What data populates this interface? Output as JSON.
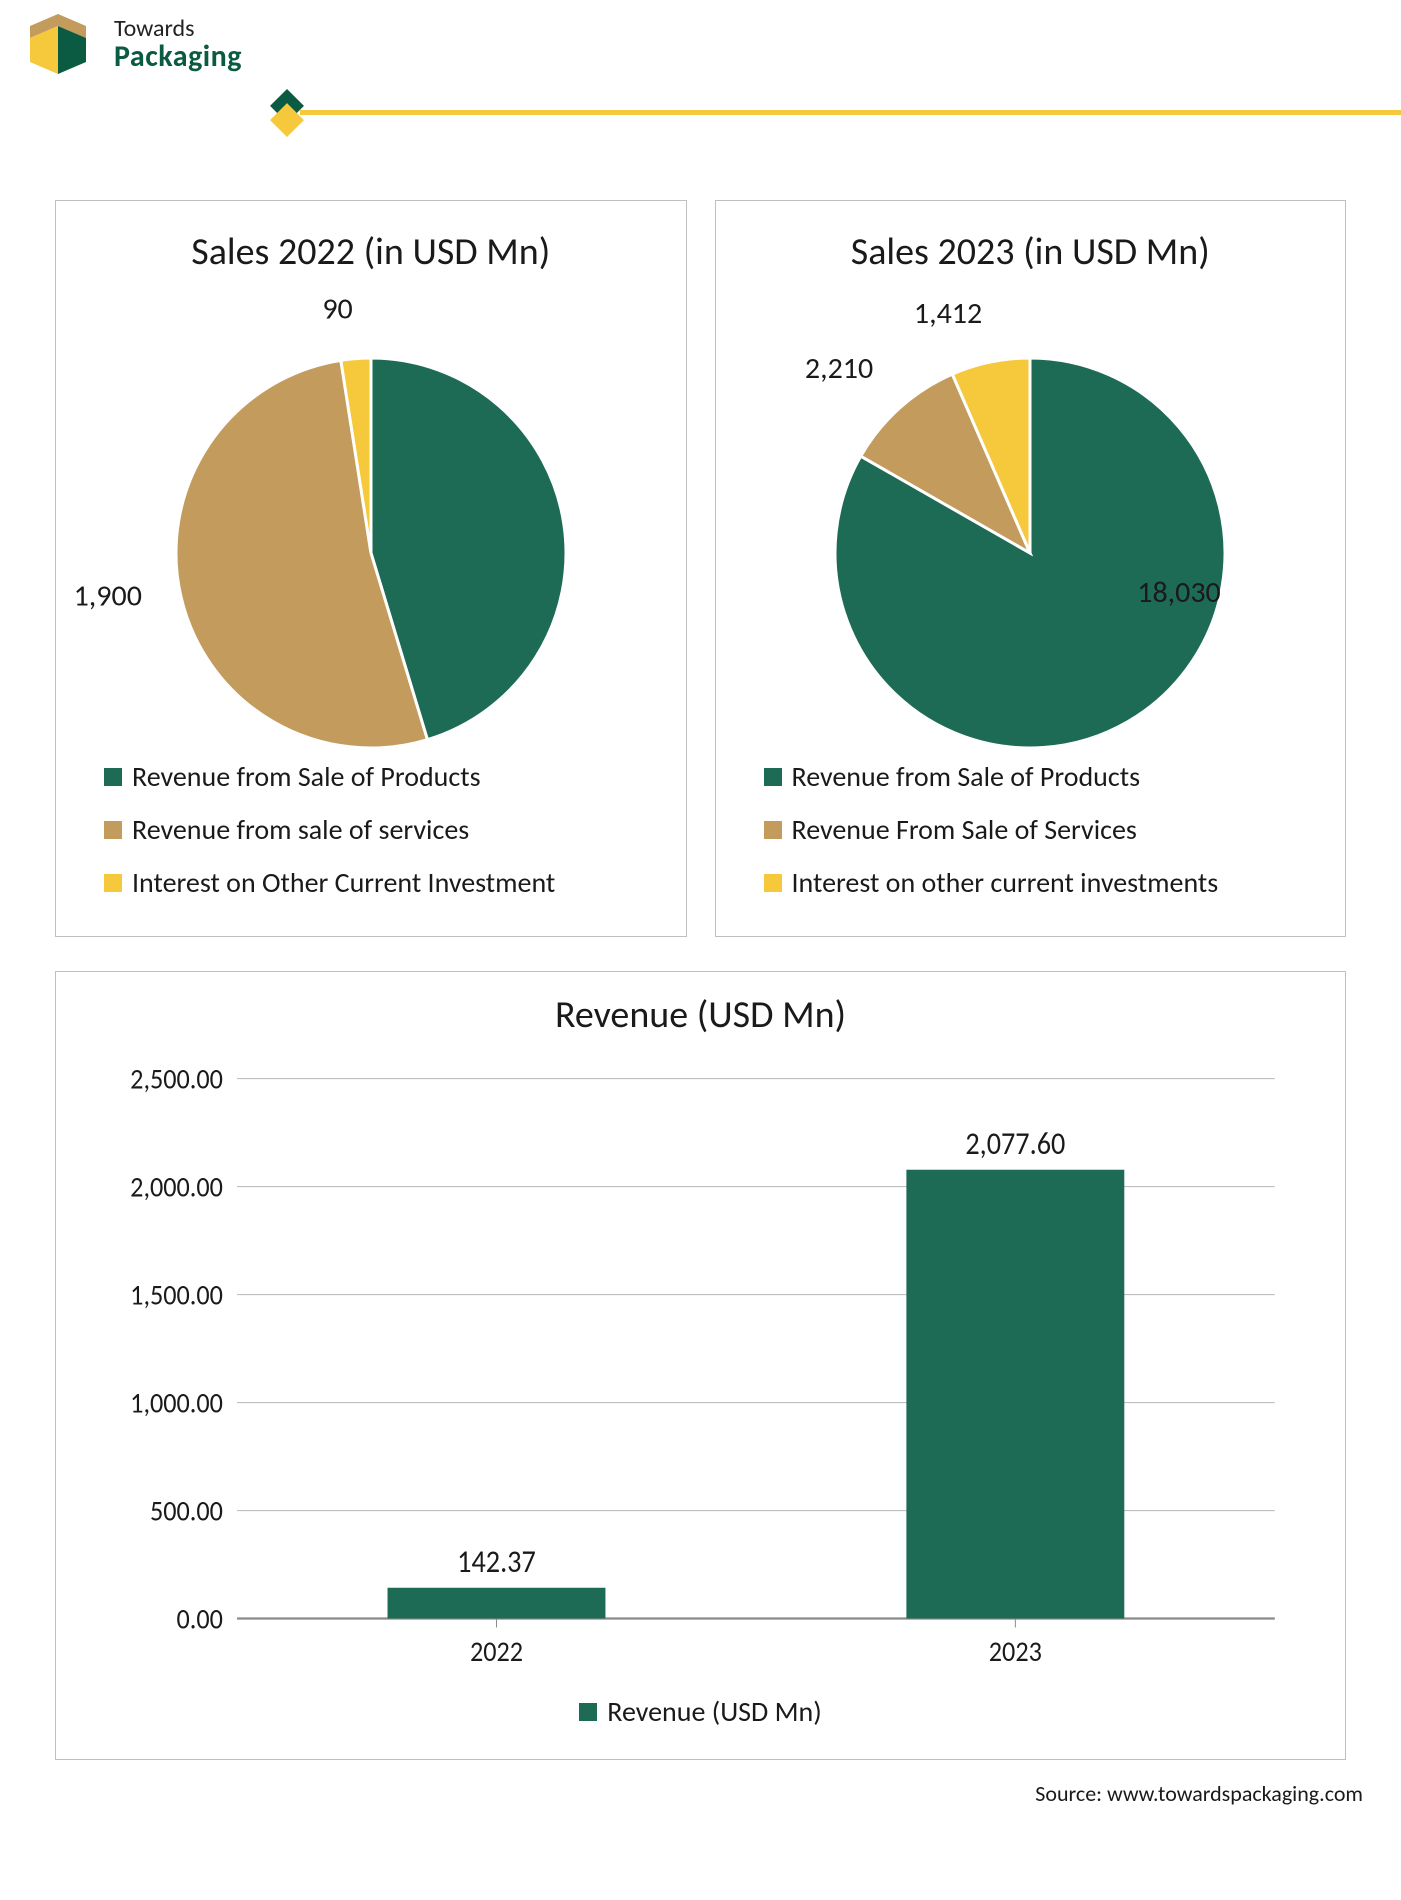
{
  "brand": {
    "line1": "Towards",
    "line2": "Packaging",
    "colors": {
      "green": "#0b5a42",
      "tan": "#c39b5d",
      "yellow": "#f5c93b",
      "dark": "#232323"
    }
  },
  "divider": {
    "line_color": "#f5c93b",
    "diamond_front": "#f5c93b",
    "diamond_back": "#0b5a42"
  },
  "pie2022": {
    "type": "pie",
    "title": "Sales 2022 (in USD Mn)",
    "title_fontsize": 38,
    "slices": [
      {
        "name": "Revenue from Sale of Products",
        "value": 1650,
        "color": "#1e6b55",
        "show_label": false
      },
      {
        "name": "Revenue from sale of services",
        "value": 1900,
        "color": "#c39b5d",
        "show_label": true,
        "label_text": "1,900"
      },
      {
        "name": "Interest on Other Current Investment",
        "value": 90,
        "color": "#f5c93b",
        "show_label": true,
        "label_text": "90"
      }
    ],
    "legend": [
      {
        "color": "#1e6b55",
        "label": "Revenue from Sale of Products"
      },
      {
        "color": "#c39b5d",
        "label": "Revenue from sale of services"
      },
      {
        "color": "#f5c93b",
        "label": "Interest on Other Current Investment"
      }
    ],
    "background_color": "#ffffff",
    "label_fontsize": 30,
    "legend_fontsize": 28
  },
  "pie2023": {
    "type": "pie",
    "title": "Sales 2023 (in USD Mn)",
    "title_fontsize": 38,
    "slices": [
      {
        "name": "Revenue from Sale of Products",
        "value": 18030,
        "color": "#1e6b55",
        "show_label": true,
        "label_text": "18,030"
      },
      {
        "name": "Revenue From Sale of Services",
        "value": 2210,
        "color": "#c39b5d",
        "show_label": true,
        "label_text": "2,210"
      },
      {
        "name": "Interest on other current investments",
        "value": 1412,
        "color": "#f5c93b",
        "show_label": true,
        "label_text": "1,412"
      }
    ],
    "legend": [
      {
        "color": "#1e6b55",
        "label": "Revenue from Sale of Products"
      },
      {
        "color": "#c39b5d",
        "label": "Revenue From Sale of Services"
      },
      {
        "color": "#f5c93b",
        "label": "Interest on other current investments"
      }
    ],
    "background_color": "#ffffff",
    "label_fontsize": 30,
    "legend_fontsize": 28
  },
  "bar": {
    "type": "bar",
    "title": "Revenue  (USD Mn)",
    "title_fontsize": 38,
    "categories": [
      "2022",
      "2023"
    ],
    "values": [
      142.37,
      2077.6
    ],
    "value_labels": [
      "142.37",
      "2,077.60"
    ],
    "bar_color": "#1e6b55",
    "ylim": [
      0,
      2500
    ],
    "ytick_step": 500,
    "ytick_labels": [
      "0.00",
      "500.00",
      "1,000.00",
      "1,500.00",
      "2,000.00",
      "2,500.00"
    ],
    "grid_color": "#bfbfbf",
    "axis_color": "#8a8a8a",
    "background_color": "#ffffff",
    "bar_width_ratio": 0.42,
    "label_fontsize": 26,
    "value_label_fontsize": 28,
    "legend_label": "Revenue  (USD Mn)"
  },
  "source": {
    "prefix": "Source: ",
    "text": "www.towardspackaging.com"
  }
}
